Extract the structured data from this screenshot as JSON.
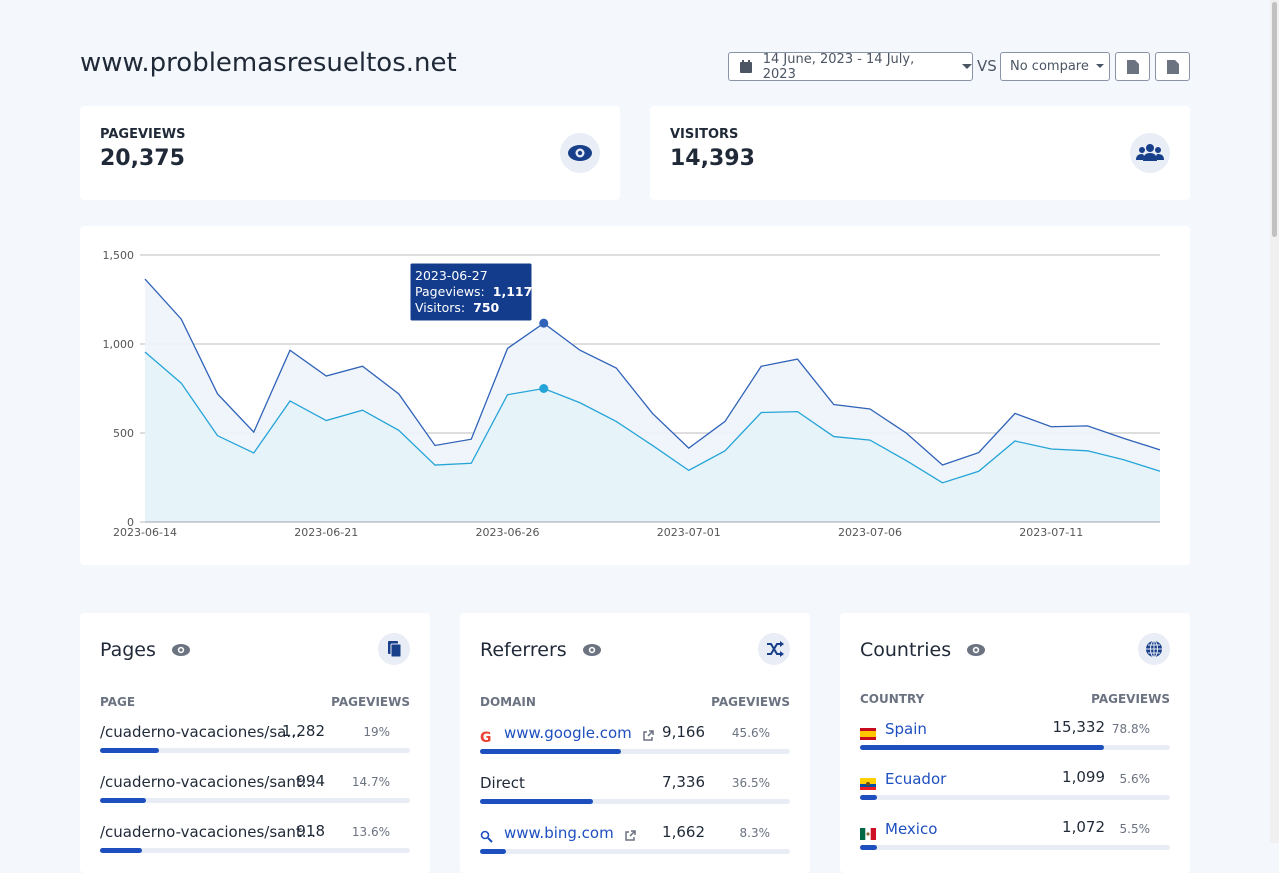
{
  "header": {
    "title": "www.problemasresueltos.net",
    "date_range": "14 June, 2023 - 14 July, 2023",
    "vs": "VS",
    "compare": "No compare"
  },
  "stats": [
    {
      "label": "PAGEVIEWS",
      "value": "20,375"
    },
    {
      "label": "VISITORS",
      "value": "14,393"
    }
  ],
  "chart_data": {
    "type": "line",
    "categories": [
      "2023-06-14",
      null,
      null,
      null,
      null,
      "2023-06-21",
      null,
      null,
      null,
      null,
      "2023-06-26",
      null,
      null,
      null,
      null,
      "2023-07-01",
      null,
      null,
      null,
      null,
      "2023-07-06",
      null,
      null,
      null,
      null,
      "2023-07-11",
      null,
      null,
      null
    ],
    "series": [
      {
        "color": "#2f62b8",
        "values": [
          1365,
          1140,
          720,
          505,
          965,
          820,
          875,
          720,
          430,
          465,
          975,
          1117,
          965,
          865,
          610,
          415,
          565,
          875,
          915,
          660,
          635,
          500,
          320,
          390,
          610,
          535,
          540,
          470,
          405
        ]
      },
      {
        "color": "#25a4d8",
        "values": [
          955,
          780,
          485,
          388,
          680,
          570,
          628,
          515,
          320,
          330,
          715,
          750,
          670,
          565,
          430,
          290,
          400,
          615,
          620,
          480,
          460,
          345,
          220,
          285,
          455,
          410,
          400,
          350,
          285
        ]
      }
    ],
    "ylim": [
      0,
      1500
    ],
    "yticks": [
      0,
      500,
      {
        "value": 1000,
        "label": "1,000"
      },
      {
        "value": 1500,
        "label": "1,500"
      }
    ],
    "grid": true,
    "tooltip": {
      "date": "2023-06-27",
      "rows": [
        {
          "label": "Pageviews:",
          "value": "1,117"
        },
        {
          "label": "Visitors:",
          "value": "750"
        }
      ]
    }
  },
  "panels": [
    {
      "title": "Pages",
      "columns": [
        "PAGE",
        "PAGEVIEWS"
      ],
      "rows": [
        {
          "label": "/cuaderno-vacaciones/sa...",
          "value": "1,282",
          "percent": 19,
          "percent_label": "19%"
        },
        {
          "label": "/cuaderno-vacaciones/sant...",
          "value": "994",
          "percent": 14.7,
          "percent_label": "14.7%"
        },
        {
          "label": "/cuaderno-vacaciones/sant...",
          "value": "918",
          "percent": 13.6,
          "percent_label": "13.6%"
        }
      ]
    },
    {
      "title": "Referrers",
      "columns": [
        "DOMAIN",
        "PAGEVIEWS"
      ],
      "rows": [
        {
          "label": "www.google.com",
          "value": "9,166",
          "percent": 45.6,
          "percent_label": "45.6%"
        },
        {
          "label": "Direct",
          "value": "7,336",
          "percent": 36.5,
          "percent_label": "36.5%"
        },
        {
          "label": "www.bing.com",
          "value": "1,662",
          "percent": 8.3,
          "percent_label": "8.3%"
        }
      ]
    },
    {
      "title": "Countries",
      "columns": [
        "COUNTRY",
        "PAGEVIEWS"
      ],
      "rows": [
        {
          "label": "Spain",
          "value": "15,332",
          "percent": 78.8,
          "percent_label": "78.8%"
        },
        {
          "label": "Ecuador",
          "value": "1,099",
          "percent": 5.6,
          "percent_label": "5.6%"
        },
        {
          "label": "Mexico",
          "value": "1,072",
          "percent": 5.5,
          "percent_label": "5.5%"
        }
      ]
    }
  ]
}
